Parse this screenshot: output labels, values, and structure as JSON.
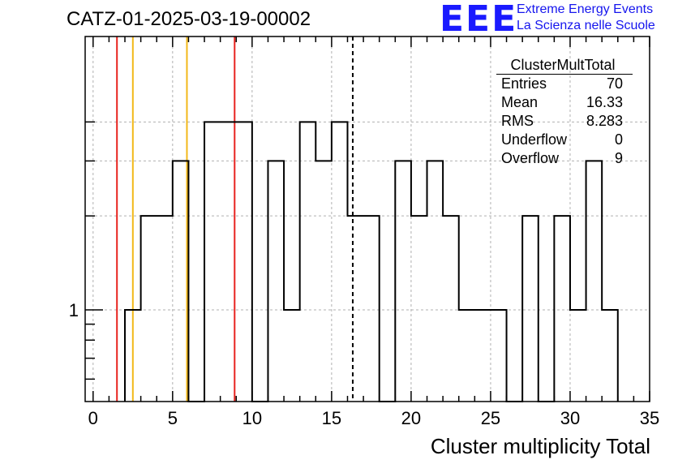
{
  "header": {
    "title": "CATZ-01-2025-03-19-00002",
    "logo_text": "EEE",
    "tagline_line1": "Extreme Energy Events",
    "tagline_line2": "La Scienza nelle Scuole"
  },
  "stats_box": {
    "title": "ClusterMultTotal",
    "rows": [
      {
        "label": "Entries",
        "value": "70"
      },
      {
        "label": "Mean",
        "value": "16.33"
      },
      {
        "label": "RMS",
        "value": "8.283"
      },
      {
        "label": "Underflow",
        "value": "0"
      },
      {
        "label": "Overflow",
        "value": "9"
      }
    ]
  },
  "chart_data": {
    "type": "histogram",
    "xlabel": "Cluster multiplicity Total",
    "ylabel": "",
    "xlim": [
      -0.5,
      35
    ],
    "log_y": true,
    "bin_width": 1,
    "x_ticks": [
      0,
      5,
      10,
      15,
      20,
      25,
      30,
      35
    ],
    "y_tick_labels": [
      {
        "value": 1,
        "label": "1"
      }
    ],
    "grid": true,
    "bins": [
      {
        "x": 2.5,
        "count": 1
      },
      {
        "x": 3.5,
        "count": 2
      },
      {
        "x": 4.5,
        "count": 2
      },
      {
        "x": 5.5,
        "count": 3
      },
      {
        "x": 6.5,
        "count": 0
      },
      {
        "x": 7.5,
        "count": 4
      },
      {
        "x": 8.5,
        "count": 4
      },
      {
        "x": 9.5,
        "count": 4
      },
      {
        "x": 10.5,
        "count": 0
      },
      {
        "x": 11.5,
        "count": 3
      },
      {
        "x": 12.5,
        "count": 1
      },
      {
        "x": 13.5,
        "count": 4
      },
      {
        "x": 14.5,
        "count": 3
      },
      {
        "x": 15.5,
        "count": 4
      },
      {
        "x": 16.5,
        "count": 2
      },
      {
        "x": 17.5,
        "count": 2
      },
      {
        "x": 18.5,
        "count": 0
      },
      {
        "x": 19.5,
        "count": 3
      },
      {
        "x": 20.5,
        "count": 2
      },
      {
        "x": 21.5,
        "count": 3
      },
      {
        "x": 22.5,
        "count": 2
      },
      {
        "x": 23.5,
        "count": 1
      },
      {
        "x": 24.5,
        "count": 1
      },
      {
        "x": 25.5,
        "count": 1
      },
      {
        "x": 26.5,
        "count": 0
      },
      {
        "x": 27.5,
        "count": 2
      },
      {
        "x": 28.5,
        "count": 0
      },
      {
        "x": 29.5,
        "count": 2
      },
      {
        "x": 30.5,
        "count": 1
      },
      {
        "x": 31.5,
        "count": 3
      },
      {
        "x": 32.5,
        "count": 1
      }
    ],
    "vertical_lines": [
      {
        "x": 1.5,
        "color": "#e8231f",
        "style": "solid"
      },
      {
        "x": 2.5,
        "color": "#f2b81a",
        "style": "solid"
      },
      {
        "x": 5.9,
        "color": "#f2b81a",
        "style": "solid"
      },
      {
        "x": 8.9,
        "color": "#e8231f",
        "style": "solid"
      },
      {
        "x": 16.33,
        "color": "#000000",
        "style": "dashed"
      }
    ]
  }
}
